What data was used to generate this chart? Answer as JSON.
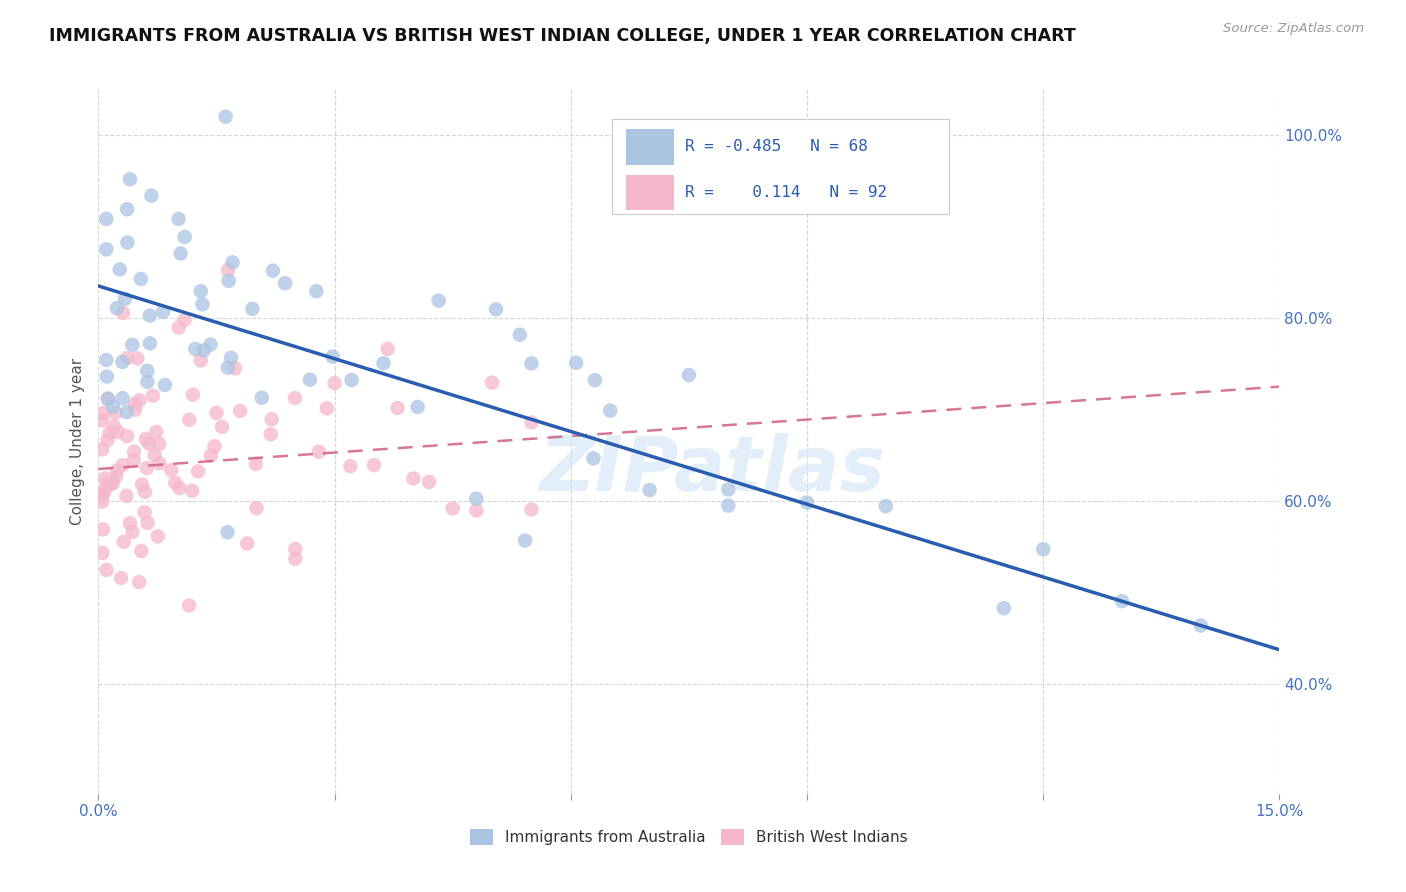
{
  "title": "IMMIGRANTS FROM AUSTRALIA VS BRITISH WEST INDIAN COLLEGE, UNDER 1 YEAR CORRELATION CHART",
  "source": "Source: ZipAtlas.com",
  "ylabel": "College, Under 1 year",
  "legend_R1": "-0.485",
  "legend_N1": "68",
  "legend_R2": "0.114",
  "legend_N2": "92",
  "color_australia": "#aac4e2",
  "color_bwi": "#f5b8cb",
  "line_color_australia": "#2a5db0",
  "line_color_bwi": "#d06080",
  "watermark": "ZIPatlas",
  "xlim": [
    0.0,
    0.15
  ],
  "ylim": [
    0.28,
    1.05
  ],
  "x_ticks": [
    0.0,
    0.03,
    0.06,
    0.09,
    0.12,
    0.15
  ],
  "x_tick_labels": [
    "0.0%",
    "",
    "",
    "",
    "",
    "15.0%"
  ],
  "y_ticks": [
    0.4,
    0.6,
    0.8,
    1.0
  ],
  "y_tick_labels": [
    "40.0%",
    "60.0%",
    "80.0%",
    "100.0%"
  ],
  "aus_intercept": 0.835,
  "aus_slope": -2.65,
  "bwi_intercept": 0.635,
  "bwi_slope": 0.6
}
